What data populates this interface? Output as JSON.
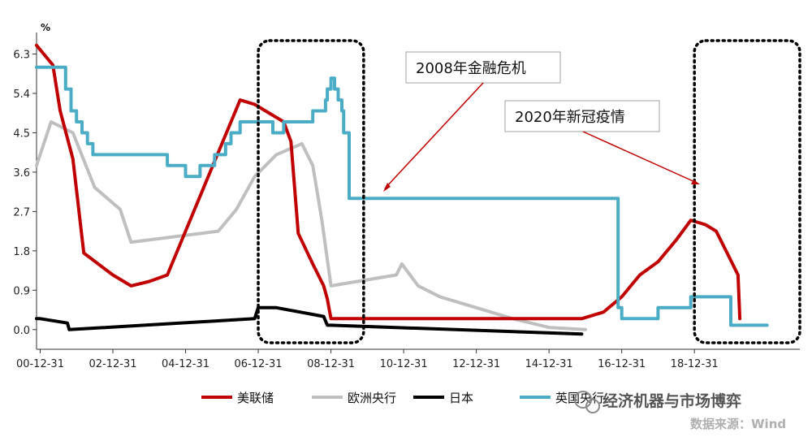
{
  "chart_data": {
    "type": "line",
    "unit": "%",
    "ylim": [
      -0.45,
      6.7
    ],
    "yticks": [
      "6.3",
      "5.4",
      "4.5",
      "3.6",
      "2.7",
      "1.8",
      "0.9",
      "0.0"
    ],
    "ytick_values": [
      6.3,
      5.4,
      4.5,
      3.6,
      2.7,
      1.8,
      0.9,
      0.0
    ],
    "xlim": [
      2000.9,
      2021.9
    ],
    "xticks": [
      "00-12-31",
      "02-12-31",
      "04-12-31",
      "06-12-31",
      "08-12-31",
      "10-12-31",
      "12-12-31",
      "14-12-31",
      "16-12-31",
      "18-12-31"
    ],
    "xtick_values": [
      2001,
      2003,
      2005,
      2007,
      2009,
      2011,
      2013,
      2015,
      2017,
      2019
    ],
    "series": [
      {
        "name": "美联储",
        "color": "#c00000",
        "width": 4,
        "x": [
          2000.9,
          2001.35,
          2001.55,
          2001.9,
          2002.2,
          2003.0,
          2003.5,
          2004.0,
          2004.5,
          2005.0,
          2006.0,
          2006.5,
          2006.9,
          2007.7,
          2007.9,
          2008.1,
          2008.5,
          2008.8,
          2008.9,
          2009.0,
          2015.9,
          2016.5,
          2017.0,
          2017.5,
          2018.0,
          2018.5,
          2018.9,
          2019.3,
          2019.6,
          2019.9,
          2020.2,
          2020.25
        ],
        "y": [
          6.5,
          6.05,
          5.0,
          3.9,
          1.75,
          1.25,
          1.0,
          1.1,
          1.25,
          2.25,
          4.25,
          5.25,
          5.15,
          4.75,
          4.3,
          2.2,
          1.5,
          1.0,
          0.7,
          0.25,
          0.25,
          0.4,
          0.75,
          1.25,
          1.55,
          2.05,
          2.5,
          2.4,
          2.25,
          1.75,
          1.25,
          0.25
        ]
      },
      {
        "name": "欧洲央行",
        "color": "#bfbfbf",
        "width": 4,
        "x": [
          2000.9,
          2001.3,
          2001.9,
          2002.5,
          2003.2,
          2003.5,
          2005.9,
          2006.4,
          2006.9,
          2007.5,
          2008.2,
          2008.5,
          2008.75,
          2009.0,
          2010.8,
          2010.95,
          2011.4,
          2012.0,
          2013.0,
          2014.0,
          2014.5,
          2015.0,
          2016.0
        ],
        "y": [
          3.75,
          4.75,
          4.5,
          3.25,
          2.75,
          2.0,
          2.25,
          2.75,
          3.5,
          4.0,
          4.25,
          3.75,
          2.5,
          1.0,
          1.25,
          1.5,
          1.0,
          0.75,
          0.5,
          0.25,
          0.15,
          0.05,
          0.0
        ]
      },
      {
        "name": "日本",
        "color": "#000000",
        "width": 4,
        "x": [
          2000.9,
          2001.0,
          2001.75,
          2001.8,
          2006.9,
          2007.0,
          2007.5,
          2008.8,
          2008.9,
          2009.0,
          2015.9
        ],
        "y": [
          0.25,
          0.25,
          0.15,
          0.0,
          0.25,
          0.5,
          0.5,
          0.3,
          0.1,
          0.1,
          -0.1
        ]
      },
      {
        "name": "英国央行",
        "color": "#4bacc6",
        "width": 4,
        "step": true,
        "x": [
          2000.9,
          2001.7,
          2001.85,
          2002.0,
          2002.15,
          2002.3,
          2002.45,
          2002.6,
          2004.5,
          2005.0,
          2005.4,
          2005.8,
          2006.1,
          2006.25,
          2006.5,
          2006.8,
          2007.4,
          2007.7,
          2008.5,
          2008.85,
          2008.9,
          2009.0,
          2009.1,
          2009.2,
          2009.3,
          2009.35,
          2009.5,
          2016.9,
          2017.0,
          2018.0,
          2018.9,
          2020.0,
          2020.3,
          2021.0
        ],
        "y": [
          6.0,
          5.5,
          5.0,
          4.75,
          4.5,
          4.25,
          4.0,
          4.0,
          3.75,
          3.5,
          3.75,
          4.0,
          4.25,
          4.5,
          4.75,
          4.75,
          4.5,
          4.75,
          5.0,
          5.25,
          5.5,
          5.75,
          5.5,
          5.25,
          5.0,
          4.5,
          3.0,
          0.5,
          0.25,
          0.5,
          0.75,
          0.1,
          0.1,
          0.1
        ]
      }
    ],
    "legend": [
      "美联储",
      "欧洲央行",
      "日本",
      "英国央行"
    ],
    "legend_position": "bottom",
    "annotations": [
      "2008年金融危机",
      "2020年新冠疫情"
    ],
    "highlight_ranges": [
      [
        2007.0,
        2009.9
      ],
      [
        2019.0,
        2021.9
      ]
    ],
    "grid": false
  },
  "watermark": "经济机器与市场博弈",
  "source": "数据来源：Wind"
}
